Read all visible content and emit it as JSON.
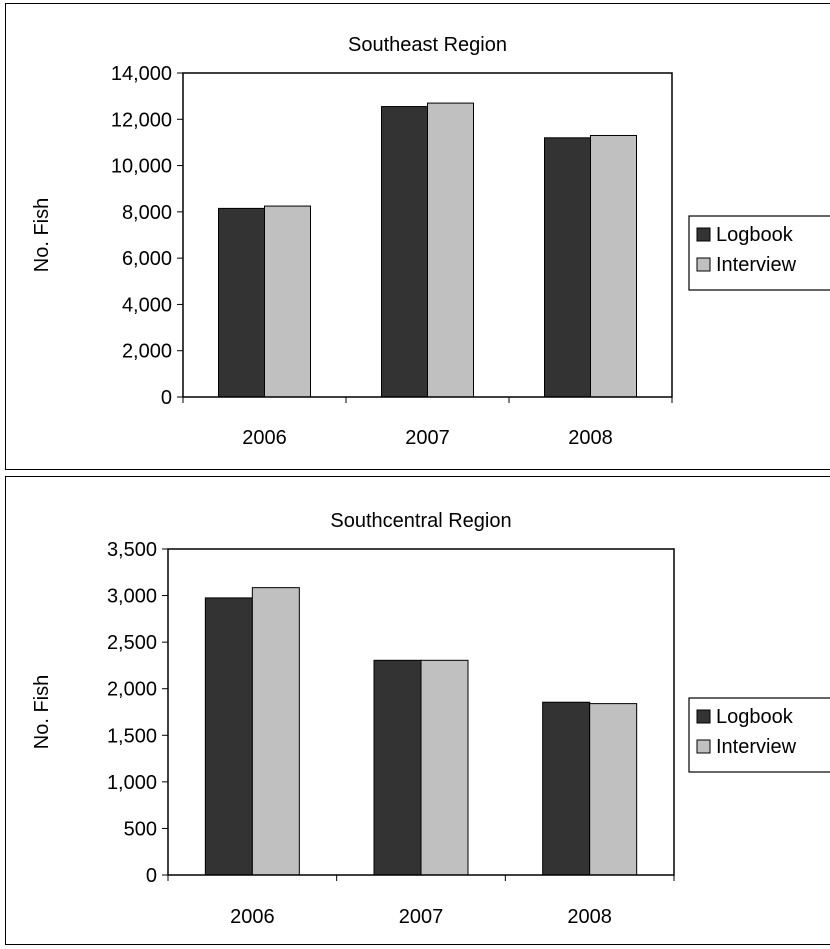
{
  "chart_data": [
    {
      "type": "bar",
      "title": "Southeast Region",
      "ylabel": "No. Fish",
      "xlabel": "",
      "categories": [
        "2006",
        "2007",
        "2008"
      ],
      "ylim": [
        0,
        14000
      ],
      "yticks": [
        "0",
        "2,000",
        "4,000",
        "6,000",
        "8,000",
        "10,000",
        "12,000",
        "14,000"
      ],
      "series": [
        {
          "name": "Logbook",
          "color": "#333333",
          "values": [
            8150,
            12550,
            11200
          ]
        },
        {
          "name": "Interview",
          "color": "#c0c0c0",
          "values": [
            8250,
            12700,
            11300
          ]
        }
      ],
      "grid": false,
      "legend": "right"
    },
    {
      "type": "bar",
      "title": "Southcentral Region",
      "ylabel": "No. Fish",
      "xlabel": "",
      "categories": [
        "2006",
        "2007",
        "2008"
      ],
      "ylim": [
        0,
        3500
      ],
      "yticks": [
        "0",
        "500",
        "1,000",
        "1,500",
        "2,000",
        "2,500",
        "3,000",
        "3,500"
      ],
      "series": [
        {
          "name": "Logbook",
          "color": "#333333",
          "values": [
            2975,
            2305,
            1855
          ]
        },
        {
          "name": "Interview",
          "color": "#c0c0c0",
          "values": [
            3085,
            2305,
            1840
          ]
        }
      ],
      "grid": false,
      "legend": "right"
    }
  ]
}
